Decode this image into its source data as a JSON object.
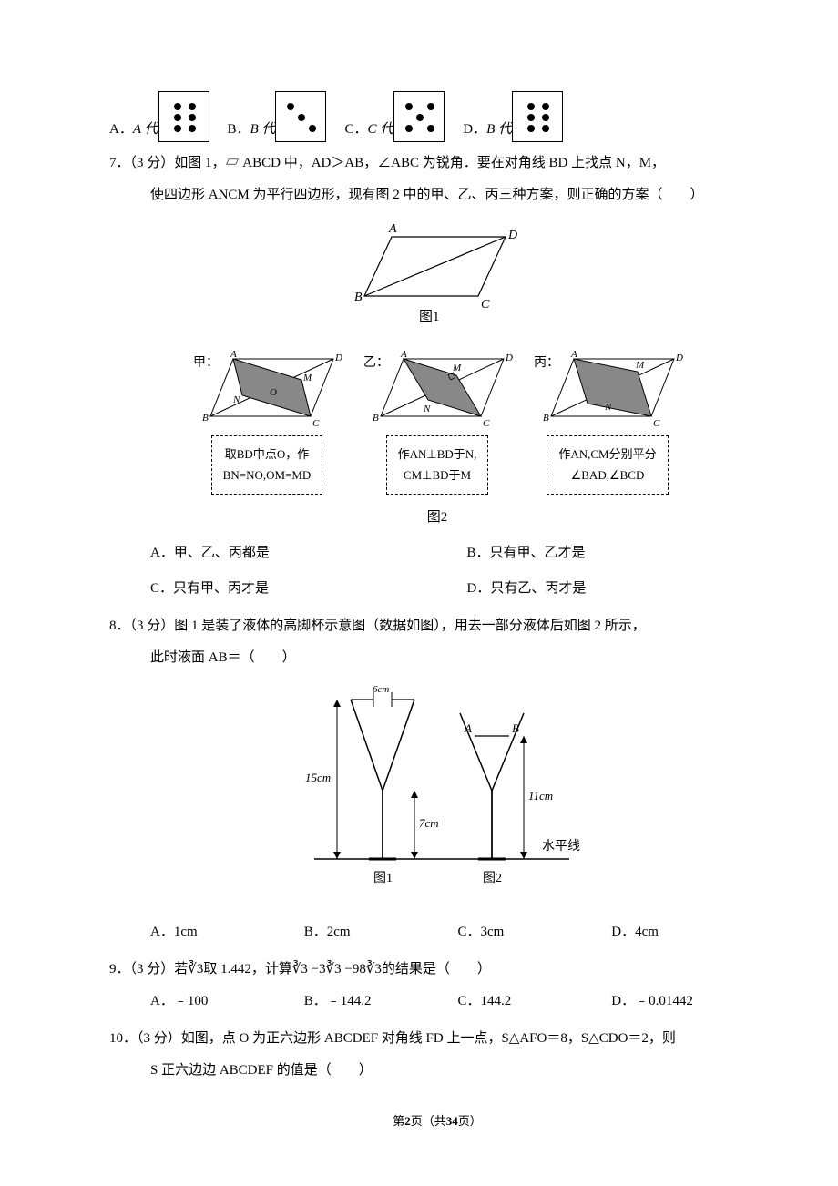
{
  "page": {
    "current": 2,
    "total": 34,
    "footer_prefix": "第",
    "footer_mid": "页（共",
    "footer_suffix": "页）"
  },
  "q6": {
    "options": {
      "A": {
        "label": "A．",
        "text": "A 代"
      },
      "B": {
        "label": "B．",
        "text": "B 代"
      },
      "C": {
        "label": "C．",
        "text": "C 代"
      },
      "D": {
        "label": "D．",
        "text": "B 代"
      }
    },
    "dice": {
      "A": {
        "positions": [
          [
            16,
            12
          ],
          [
            32,
            12
          ],
          [
            16,
            24
          ],
          [
            32,
            24
          ],
          [
            16,
            36
          ],
          [
            32,
            36
          ]
        ]
      },
      "B": {
        "positions": [
          [
            12,
            12
          ],
          [
            24,
            24
          ],
          [
            36,
            36
          ]
        ]
      },
      "C": {
        "positions": [
          [
            12,
            12
          ],
          [
            36,
            12
          ],
          [
            24,
            24
          ],
          [
            12,
            36
          ],
          [
            36,
            36
          ]
        ]
      },
      "D": {
        "positions": [
          [
            16,
            12
          ],
          [
            32,
            12
          ],
          [
            16,
            24
          ],
          [
            32,
            24
          ],
          [
            16,
            36
          ],
          [
            32,
            36
          ]
        ]
      }
    }
  },
  "q7": {
    "num": "7．",
    "points": "（3 分）",
    "line1": "如图 1，▱ ABCD 中，AD＞AB，∠ABC 为锐角．要在对角线 BD 上找点 N，M，",
    "line2": "使四边形 ANCM 为平行四边形，现有图 2 中的甲、乙、丙三种方案，则正确的方案（　　）",
    "fig1_label": "图1",
    "fig2_label": "图2",
    "methods": {
      "jia": {
        "prefix": "甲：",
        "desc1": "取BD中点O，作",
        "desc2": "BN=NO,OM=MD"
      },
      "yi": {
        "prefix": "乙：",
        "desc1": "作AN⊥BD于N,",
        "desc2": "CM⊥BD于M"
      },
      "bing": {
        "prefix": "丙：",
        "desc1": "作AN,CM分别平分",
        "desc2": "∠BAD,∠BCD"
      }
    },
    "options": {
      "A": "A．甲、乙、丙都是",
      "B": "B．只有甲、乙才是",
      "C": "C．只有甲、丙才是",
      "D": "D．只有乙、丙才是"
    }
  },
  "q8": {
    "num": "8．",
    "points": "（3 分）",
    "line1": "图 1 是装了液体的高脚杯示意图（数据如图），用去一部分液体后如图 2 所示，",
    "line2": "此时液面 AB＝（　　）",
    "labels": {
      "d6": "6cm",
      "h15": "15cm",
      "h7": "7cm",
      "h11": "11cm",
      "water": "水平线",
      "A": "A",
      "B": "B",
      "fig1": "图1",
      "fig2": "图2"
    },
    "options": {
      "A": "A．1cm",
      "B": "B．2cm",
      "C": "C．3cm",
      "D": "D．4cm"
    }
  },
  "q9": {
    "num": "9．",
    "points": "（3 分）",
    "text": "若∛3取 1.442，计算∛3 −3∛3 −98∛3的结果是（　　）",
    "options": {
      "A": "A．﹣100",
      "B": "B．﹣144.2",
      "C": "C．144.2",
      "D": "D．﹣0.01442"
    }
  },
  "q10": {
    "num": "10．",
    "points": "（3 分）",
    "line1": "如图，点 O 为正六边形 ABCDEF 对角线 FD 上一点，S△AFO＝8，S△CDO＝2，则",
    "line2": "S 正六边边 ABCDEF 的值是（　　）"
  }
}
